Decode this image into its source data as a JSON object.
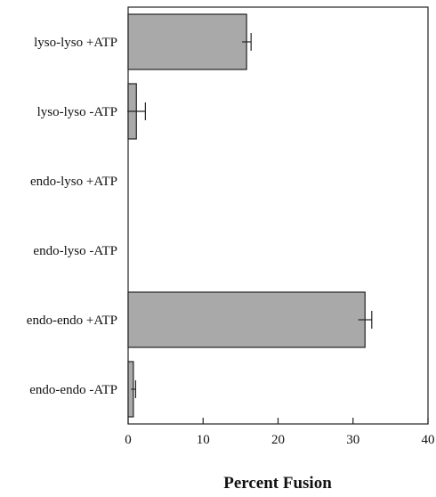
{
  "chart_data": {
    "type": "bar",
    "orientation": "horizontal",
    "categories": [
      "lyso-lyso +ATP",
      "lyso-lyso -ATP",
      "endo-lyso +ATP",
      "endo-lyso -ATP",
      "endo-endo +ATP",
      "endo-endo -ATP"
    ],
    "values": [
      15.8,
      1.1,
      0,
      0,
      31.6,
      0.7
    ],
    "errors": [
      0.6,
      1.2,
      0,
      0,
      0.9,
      0.3
    ],
    "xlabel": "Percent Fusion",
    "xlim": [
      0,
      40
    ],
    "xticks": [
      0,
      10,
      20,
      30,
      40
    ],
    "grid": false,
    "colors": {
      "bar": "#a9a9a9",
      "stroke": "#222222"
    }
  }
}
